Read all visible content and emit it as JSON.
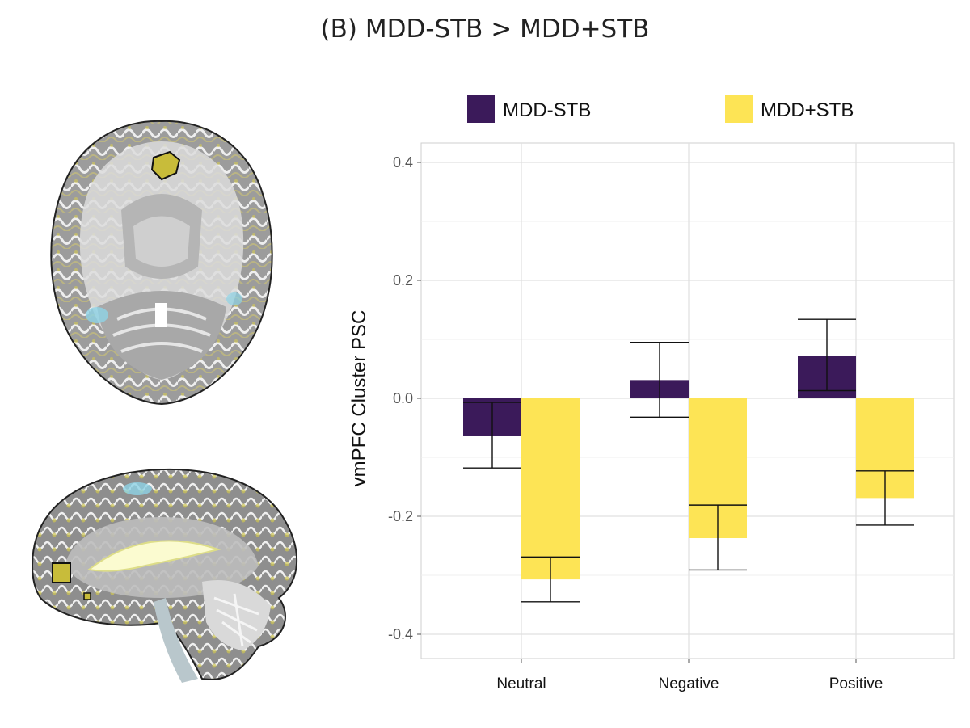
{
  "figure": {
    "title": "(B) MDD-STB > MDD+STB"
  },
  "chart_data": {
    "type": "bar",
    "title": "(B) MDD-STB > MDD+STB",
    "xlabel": "",
    "ylabel": "vmPFC Cluster PSC",
    "categories": [
      "Neutral",
      "Negative",
      "Positive"
    ],
    "series": [
      {
        "name": "MDD-STB",
        "color": "#3b1a5a",
        "values": [
          -0.063,
          0.031,
          0.072
        ],
        "err_low": [
          -0.118,
          -0.032,
          0.013
        ],
        "err_high": [
          -0.007,
          0.095,
          0.134
        ]
      },
      {
        "name": "MDD+STB",
        "color": "#fde455",
        "values": [
          -0.307,
          -0.237,
          -0.169
        ],
        "err_low": [
          -0.345,
          -0.291,
          -0.215
        ],
        "err_high": [
          -0.269,
          -0.181,
          -0.123
        ]
      }
    ],
    "ylim": [
      -0.43,
      0.43
    ],
    "yticks": [
      -0.4,
      -0.2,
      0.0,
      0.2,
      0.4
    ],
    "ytick_labels": [
      "-0.4",
      "-0.2",
      "0.0",
      "0.2",
      "0.4"
    ],
    "grid": true,
    "legend_position": "top"
  }
}
